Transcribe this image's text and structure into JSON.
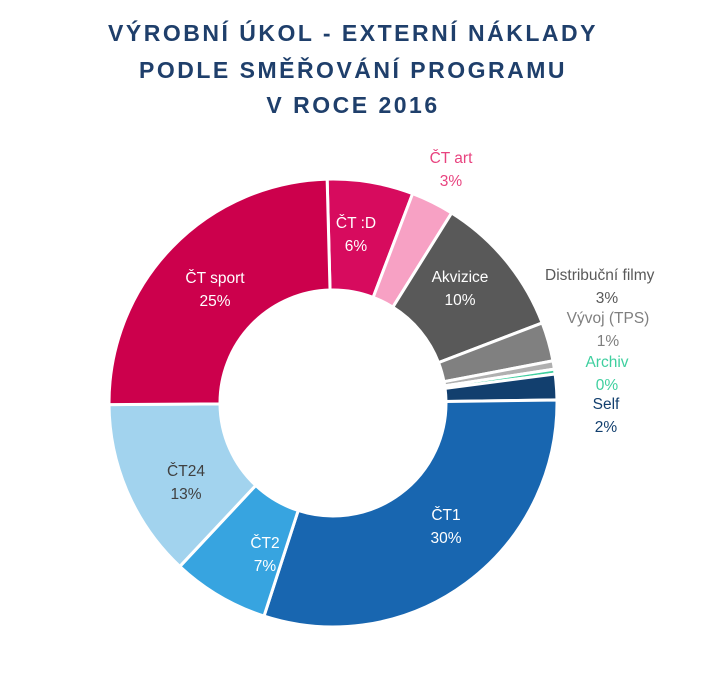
{
  "title_lines": [
    "VÝROBNÍ ÚKOL - EXTERNÍ NÁKLADY",
    "PODLE SMĚŘOVÁNÍ PROGRAMU",
    "V ROCE 2016"
  ],
  "chart_data": {
    "type": "pie",
    "title": "VÝROBNÍ ÚKOL - EXTERNÍ NÁKLADY PODLE SMĚŘOVÁNÍ PROGRAMU V ROCE 2016",
    "donut": true,
    "slices": [
      {
        "name": "ČT :D",
        "label": "6%",
        "value": 6.2,
        "color": "#d70b5e",
        "text_color": "#ffffff"
      },
      {
        "name": "ČT art",
        "label": "3%",
        "value": 3.1,
        "color": "#f7a1c4",
        "text_color": "#e8437f"
      },
      {
        "name": "Akvizice",
        "label": "10%",
        "value": 10.3,
        "color": "#595959",
        "text_color": "#ffffff"
      },
      {
        "name": "Distribuční filmy",
        "label": "3%",
        "value": 2.8,
        "color": "#808080",
        "text_color": "#595959"
      },
      {
        "name": "Vývoj (TPS)",
        "label": "1%",
        "value": 0.6,
        "color": "#b0b0b0",
        "text_color": "#7f7f7f"
      },
      {
        "name": "Archiv",
        "label": "0%",
        "value": 0.35,
        "color": "#3fcf9f",
        "text_color": "#3fcf9f"
      },
      {
        "name": "Self",
        "label": "2%",
        "value": 1.85,
        "color": "#123f6e",
        "text_color": "#123f6e"
      },
      {
        "name": "ČT1",
        "label": "30%",
        "value": 30.2,
        "color": "#1866b0",
        "text_color": "#ffffff"
      },
      {
        "name": "ČT2",
        "label": "7%",
        "value": 7.0,
        "color": "#37a4e0",
        "text_color": "#ffffff"
      },
      {
        "name": "ČT24",
        "label": "13%",
        "value": 12.9,
        "color": "#a2d3ee",
        "text_color": "#404040"
      },
      {
        "name": "ČT sport",
        "label": "25%",
        "value": 24.7,
        "color": "#cc004c",
        "text_color": "#ffffff"
      }
    ]
  }
}
